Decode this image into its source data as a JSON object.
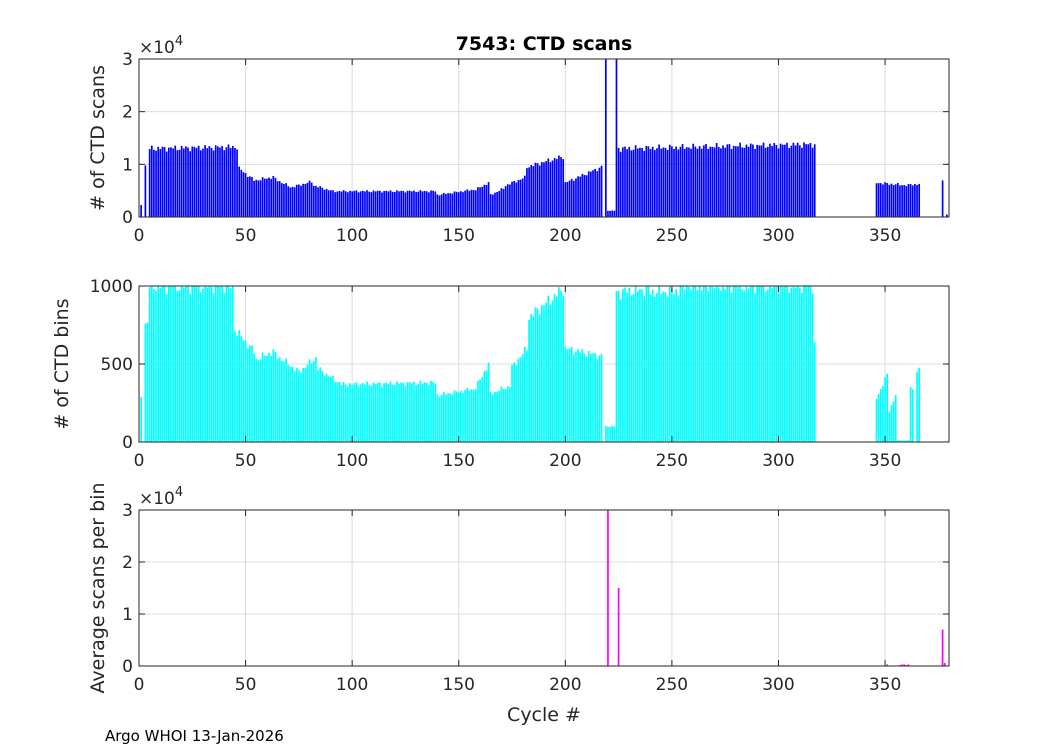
{
  "figure": {
    "title": "7543: CTD scans",
    "footer": "Argo WHOI 13-Jan-2026"
  },
  "chart_data": [
    {
      "type": "bar",
      "title": "7543: CTD scans",
      "xlabel": "",
      "ylabel": "# of CTD scans",
      "xlim": [
        0,
        380
      ],
      "ylim": [
        0,
        30000
      ],
      "xticks": [
        0,
        50,
        100,
        150,
        200,
        250,
        300,
        350
      ],
      "yticks": [
        0,
        1,
        2,
        3
      ],
      "ytick_labels": [
        "0",
        "1",
        "2",
        "3"
      ],
      "exponent_label": "×10",
      "exponent": "4",
      "grid": true,
      "color": "#0000ff",
      "segments": [
        {
          "x": [
            1,
            2
          ],
          "values": [
            2200,
            9800
          ]
        },
        {
          "x": [
            3,
            4
          ],
          "values": [
            9800,
            9600
          ]
        },
        {
          "x": [
            5,
            47
          ],
          "values": [
            13000,
            13300
          ]
        },
        {
          "x": [
            47,
            55
          ],
          "values": [
            9200,
            7000
          ]
        },
        {
          "x": [
            55,
            64
          ],
          "values": [
            7000,
            7600
          ]
        },
        {
          "x": [
            64,
            72
          ],
          "values": [
            7200,
            5700
          ]
        },
        {
          "x": [
            72,
            82
          ],
          "values": [
            5700,
            6700
          ]
        },
        {
          "x": [
            82,
            92
          ],
          "values": [
            6000,
            4900
          ]
        },
        {
          "x": [
            92,
            140
          ],
          "values": [
            4900,
            4900
          ]
        },
        {
          "x": [
            140,
            158
          ],
          "values": [
            4200,
            5200
          ]
        },
        {
          "x": [
            158,
            165
          ],
          "values": [
            5200,
            6500
          ]
        },
        {
          "x": [
            165,
            172
          ],
          "values": [
            4200,
            5400
          ]
        },
        {
          "x": [
            172,
            182
          ],
          "values": [
            6000,
            7500
          ]
        },
        {
          "x": [
            182,
            200
          ],
          "values": [
            9500,
            11500
          ]
        },
        {
          "x": [
            200,
            218
          ],
          "values": [
            6500,
            9500
          ]
        },
        {
          "x": [
            219,
            220
          ],
          "values": [
            30000,
            30000
          ]
        },
        {
          "x": [
            220,
            224
          ],
          "values": [
            1200,
            1200
          ]
        },
        {
          "x": [
            224,
            225
          ],
          "values": [
            30000,
            30000
          ]
        },
        {
          "x": [
            225,
            318
          ],
          "values": [
            13000,
            13800
          ]
        },
        {
          "x": [
            346,
            362
          ],
          "values": [
            6500,
            6000
          ]
        },
        {
          "x": [
            362,
            367
          ],
          "values": [
            6200,
            6200
          ]
        },
        {
          "x": [
            377,
            378
          ],
          "values": [
            6800,
            6800
          ]
        },
        {
          "x": [
            379,
            380
          ],
          "values": [
            500,
            500
          ]
        }
      ]
    },
    {
      "type": "bar",
      "title": "",
      "xlabel": "",
      "ylabel": "# of CTD bins",
      "xlim": [
        0,
        380
      ],
      "ylim": [
        0,
        1000
      ],
      "xticks": [
        0,
        50,
        100,
        150,
        200,
        250,
        300,
        350
      ],
      "yticks": [
        0,
        500,
        1000
      ],
      "ytick_labels": [
        "0",
        "500",
        "1000"
      ],
      "grid": true,
      "color": "#00ffff",
      "segments": [
        {
          "x": [
            1,
            2
          ],
          "values": [
            280,
            750
          ]
        },
        {
          "x": [
            3,
            5
          ],
          "values": [
            760,
            760
          ]
        },
        {
          "x": [
            5,
            45
          ],
          "values": [
            1000,
            1000
          ]
        },
        {
          "x": [
            45,
            55
          ],
          "values": [
            720,
            580
          ]
        },
        {
          "x": [
            55,
            64
          ],
          "values": [
            530,
            580
          ]
        },
        {
          "x": [
            64,
            76
          ],
          "values": [
            560,
            450
          ]
        },
        {
          "x": [
            76,
            84
          ],
          "values": [
            460,
            540
          ]
        },
        {
          "x": [
            84,
            95
          ],
          "values": [
            470,
            380
          ]
        },
        {
          "x": [
            95,
            140
          ],
          "values": [
            370,
            380
          ]
        },
        {
          "x": [
            140,
            158
          ],
          "values": [
            300,
            340
          ]
        },
        {
          "x": [
            158,
            165
          ],
          "values": [
            350,
            500
          ]
        },
        {
          "x": [
            165,
            175
          ],
          "values": [
            310,
            360
          ]
        },
        {
          "x": [
            175,
            183
          ],
          "values": [
            480,
            600
          ]
        },
        {
          "x": [
            183,
            200
          ],
          "values": [
            800,
            980
          ]
        },
        {
          "x": [
            200,
            218
          ],
          "values": [
            600,
            550
          ]
        },
        {
          "x": [
            219,
            224
          ],
          "values": [
            100,
            100
          ]
        },
        {
          "x": [
            224,
            240
          ],
          "values": [
            960,
            980
          ]
        },
        {
          "x": [
            240,
            254
          ],
          "values": [
            960,
            970
          ]
        },
        {
          "x": [
            254,
            317
          ],
          "values": [
            1000,
            1000
          ]
        },
        {
          "x": [
            317,
            318
          ],
          "values": [
            640,
            640
          ]
        },
        {
          "x": [
            346,
            352
          ],
          "values": [
            280,
            430
          ]
        },
        {
          "x": [
            352,
            356
          ],
          "values": [
            200,
            300
          ]
        },
        {
          "x": [
            356,
            362
          ],
          "values": [
            10,
            10
          ]
        },
        {
          "x": [
            362,
            364
          ],
          "values": [
            350,
            350
          ]
        },
        {
          "x": [
            365,
            367
          ],
          "values": [
            460,
            470
          ]
        }
      ]
    },
    {
      "type": "bar",
      "title": "",
      "xlabel": "Cycle #",
      "ylabel": "Average scans per bin",
      "xlim": [
        0,
        380
      ],
      "ylim": [
        0,
        30000
      ],
      "xticks": [
        0,
        50,
        100,
        150,
        200,
        250,
        300,
        350
      ],
      "yticks": [
        0,
        1,
        2,
        3
      ],
      "ytick_labels": [
        "0",
        "1",
        "2",
        "3"
      ],
      "exponent_label": "×10",
      "exponent": "4",
      "grid": true,
      "color": "#ff00ff",
      "bars": [
        {
          "x": 220,
          "value": 30000
        },
        {
          "x": 225,
          "value": 15000
        },
        {
          "x": 351,
          "value": 300
        },
        {
          "x": 357,
          "value": 200
        },
        {
          "x": 358,
          "value": 300
        },
        {
          "x": 359,
          "value": 300
        },
        {
          "x": 360,
          "value": 200
        },
        {
          "x": 361,
          "value": 300
        },
        {
          "x": 377,
          "value": 7000
        },
        {
          "x": 378,
          "value": 600
        }
      ]
    }
  ]
}
